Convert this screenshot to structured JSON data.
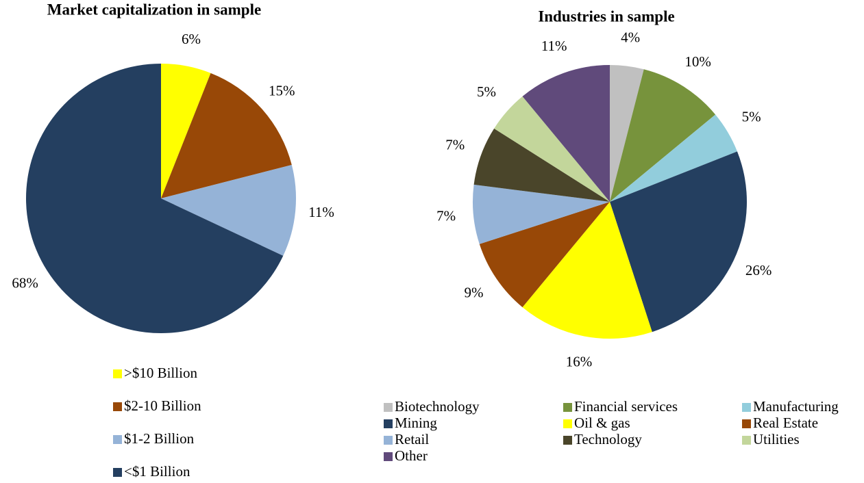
{
  "chart_data": [
    {
      "type": "pie",
      "title": "Market capitalization in sample",
      "categories": [
        ">$10 Billion",
        "$2-10 Billion",
        "$1-2 Billion",
        "<$1 Billion"
      ],
      "values": [
        6,
        15,
        11,
        68
      ],
      "value_labels": [
        "6%",
        "15%",
        "11%",
        "68%"
      ],
      "colors": [
        "#ffff00",
        "#984807",
        "#95b3d7",
        "#243f60"
      ]
    },
    {
      "type": "pie",
      "title": "Industries in sample",
      "categories": [
        "Biotechnology",
        "Financial services",
        "Manufacturing",
        "Mining",
        "Oil & gas",
        "Real Estate",
        "Retail",
        "Technology",
        "Utilities",
        "Other"
      ],
      "values": [
        4,
        10,
        5,
        26,
        16,
        9,
        7,
        7,
        5,
        11
      ],
      "value_labels": [
        "4%",
        "10%",
        "5%",
        "26%",
        "16%",
        "9%",
        "7%",
        "7%",
        "5%",
        "11%"
      ],
      "colors": [
        "#c0c0c0",
        "#77933c",
        "#92cddc",
        "#243f60",
        "#ffff00",
        "#984807",
        "#95b3d7",
        "#4a452a",
        "#c3d69b",
        "#604a7b"
      ]
    }
  ]
}
